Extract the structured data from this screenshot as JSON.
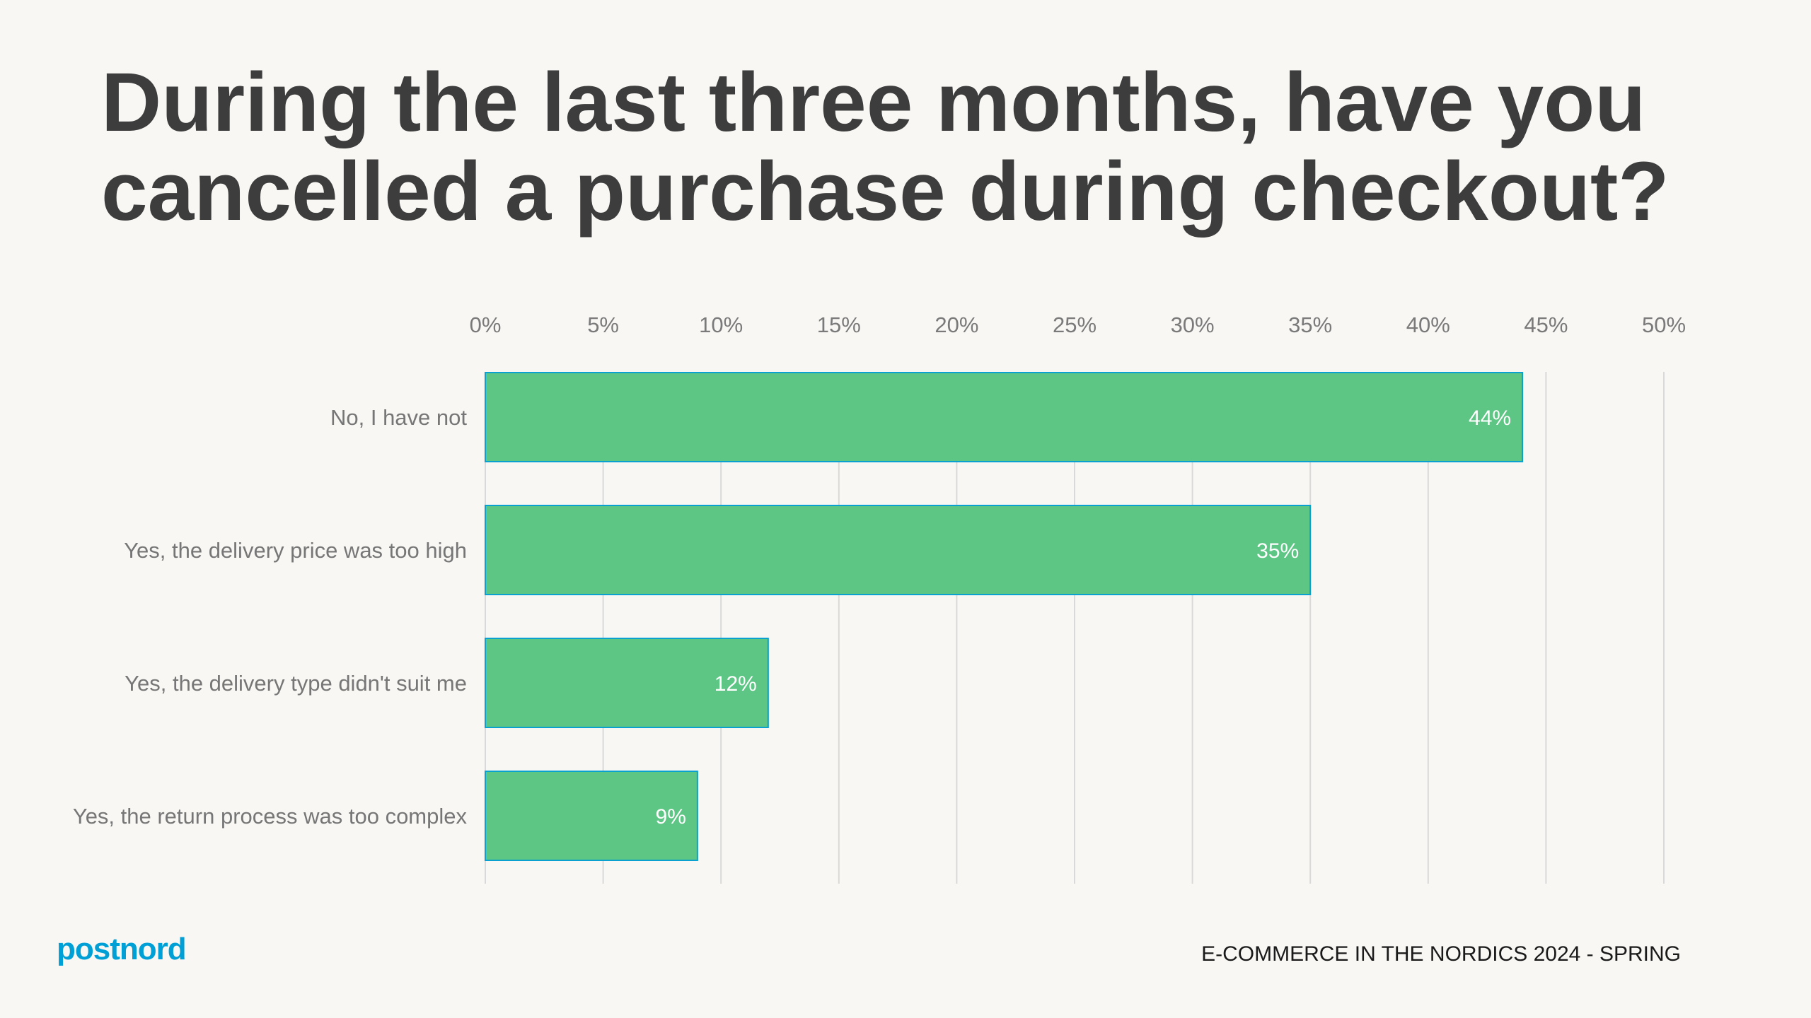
{
  "title": "During the last three months, have you cancelled a purchase during checkout?",
  "footer": "E-COMMERCE IN THE NORDICS 2024 - SPRING",
  "logo": "postnord",
  "colors": {
    "bar": "#5ec685",
    "bar_border": "#0aa0d0",
    "logo": "#00a0d6",
    "title": "#3d3d3d",
    "background": "#f8f7f4"
  },
  "chart_data": {
    "type": "bar",
    "orientation": "horizontal",
    "categories": [
      "No, I have not",
      "Yes, the delivery price was too high",
      "Yes, the delivery type didn't suit me",
      "Yes, the return process was too complex"
    ],
    "values": [
      44,
      35,
      12,
      9
    ],
    "data_labels": [
      "44%",
      "35%",
      "12%",
      "9%"
    ],
    "xlim": [
      0,
      50
    ],
    "x_ticks": [
      "0%",
      "5%",
      "10%",
      "15%",
      "20%",
      "25%",
      "30%",
      "35%",
      "40%",
      "45%",
      "50%"
    ],
    "x_axis_position": "top",
    "grid": true,
    "legend": "none"
  }
}
